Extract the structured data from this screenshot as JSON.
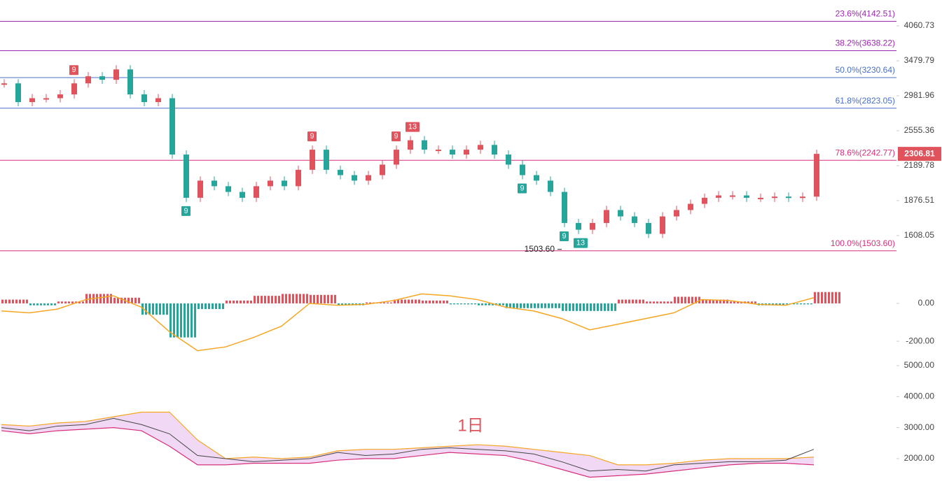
{
  "chart_data": [
    {
      "type": "candlestick",
      "scale": "log",
      "up_color": "#e0535c",
      "down_color": "#26a69a",
      "values": [
        3150,
        2900,
        2950,
        2950,
        3000,
        3150,
        3250,
        3200,
        3350,
        3000,
        2900,
        2950,
        2300,
        1900,
        2050,
        2000,
        1950,
        1900,
        2000,
        2050,
        2000,
        2150,
        2350,
        2150,
        2100,
        2050,
        2100,
        2200,
        2350,
        2450,
        2350,
        2350,
        2300,
        2350,
        2400,
        2300,
        2200,
        2100,
        2050,
        1950,
        1700,
        1650,
        1700,
        1800,
        1750,
        1700,
        1620,
        1750,
        1800,
        1850,
        1900,
        1920,
        1920,
        1900,
        1900,
        1910,
        1900,
        1910,
        2306.81
      ],
      "ylim": [
        1452,
        4552
      ],
      "yticks": [
        {
          "value": 4060.73,
          "label": "4060.73"
        },
        {
          "value": 3479.79,
          "label": "3479.79"
        },
        {
          "value": 2981.96,
          "label": "2981.96"
        },
        {
          "value": 2555.36,
          "label": "2555.36"
        },
        {
          "value": 2189.78,
          "label": "2189.78"
        },
        {
          "value": 1876.51,
          "label": "1876.51"
        },
        {
          "value": 1608.05,
          "label": "1608.05"
        }
      ],
      "levels": [
        {
          "value": 4142.51,
          "label": "23.6%(4142.51)",
          "color": "#9c27b0"
        },
        {
          "value": 3638.22,
          "label": "38.2%(3638.22)",
          "color": "#9c27b0"
        },
        {
          "value": 3230.64,
          "label": "50.0%(3230.64)",
          "color": "#4a6fc4"
        },
        {
          "value": 2823.05,
          "label": "61.8%(2823.05)",
          "color": "#4a6fc4"
        },
        {
          "value": 2242.77,
          "label": "78.6%(2242.77)",
          "color": "#d6307a"
        },
        {
          "value": 1503.6,
          "label": "100.0%(1503.60)",
          "color": "#d6307a"
        }
      ],
      "markers": [
        {
          "text": "9",
          "index": 5,
          "side": "above"
        },
        {
          "text": "9",
          "index": 22,
          "side": "above"
        },
        {
          "text": "9",
          "index": 28,
          "side": "above"
        },
        {
          "text": "13",
          "index": 29,
          "side": "above"
        },
        {
          "text": "9",
          "index": 13,
          "side": "below"
        },
        {
          "text": "9",
          "index": 37,
          "side": "below"
        },
        {
          "text": "9",
          "index": 40,
          "side": "below"
        },
        {
          "text": "13",
          "index": 41,
          "side": "below"
        }
      ],
      "low_label": {
        "label": "1503.60",
        "value": 1503.6,
        "index": 40
      }
    },
    {
      "type": "macd",
      "up_color": "#e0535c",
      "down_color": "#26a69a",
      "line_color": "#f5a623",
      "histogram": [
        20,
        -10,
        10,
        50,
        30,
        -60,
        -180,
        -30,
        15,
        40,
        50,
        45,
        -10,
        5,
        20,
        15,
        -5,
        -10,
        -25,
        -25,
        -40,
        -40,
        20,
        10,
        35,
        20,
        10,
        -10,
        -5,
        60
      ],
      "dif": [
        -40,
        -50,
        -30,
        20,
        40,
        -20,
        -150,
        -250,
        -230,
        -180,
        -120,
        0,
        -10,
        -5,
        15,
        50,
        40,
        20,
        -20,
        -40,
        -80,
        -140,
        -110,
        -80,
        -50,
        20,
        15,
        -5,
        -10,
        30
      ],
      "ylim": [
        -281,
        144
      ],
      "yticks": [
        {
          "value": 0,
          "label": "0.00"
        },
        {
          "value": -200,
          "label": "-200.00"
        }
      ]
    },
    {
      "type": "bands",
      "close_color": "#444",
      "upper_color": "#f5a623",
      "lower_color": "#d6307a",
      "fill": "#f1d9f5",
      "close": [
        3000,
        2900,
        3050,
        3100,
        3300,
        3100,
        2800,
        2100,
        2000,
        1900,
        1950,
        2000,
        2200,
        2100,
        2150,
        2300,
        2350,
        2300,
        2250,
        2150,
        1900,
        1600,
        1650,
        1600,
        1800,
        1850,
        1900,
        1900,
        1950,
        2300
      ],
      "upper": [
        3100,
        3050,
        3150,
        3200,
        3350,
        3500,
        3500,
        2600,
        2000,
        2050,
        2000,
        2050,
        2250,
        2300,
        2300,
        2350,
        2400,
        2450,
        2400,
        2300,
        2200,
        2100,
        1800,
        1800,
        1850,
        1950,
        2000,
        2000,
        2000,
        2050
      ],
      "lower": [
        2900,
        2800,
        2900,
        2950,
        3000,
        2900,
        2400,
        1800,
        1800,
        1850,
        1850,
        1850,
        1950,
        2000,
        2000,
        2100,
        2200,
        2150,
        2100,
        1900,
        1650,
        1400,
        1450,
        1500,
        1600,
        1700,
        1800,
        1850,
        1850,
        1800
      ],
      "ylim": [
        1278,
        5293
      ],
      "yticks": [
        {
          "value": 5000,
          "label": "5000.00"
        },
        {
          "value": 4000,
          "label": "4000.00"
        },
        {
          "value": 3000,
          "label": "3000.00"
        },
        {
          "value": 2000,
          "label": "2000.00"
        }
      ],
      "label": "1日"
    }
  ]
}
